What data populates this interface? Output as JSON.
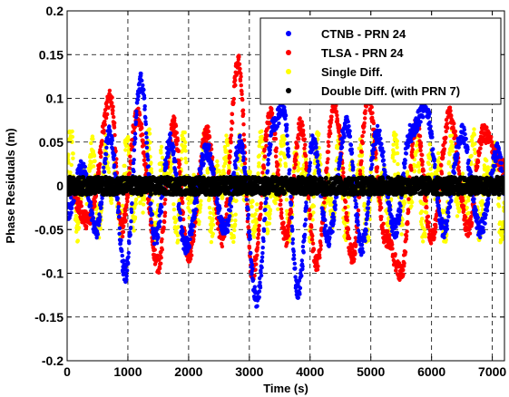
{
  "chart_data": {
    "type": "scatter",
    "title": "",
    "xlabel": "Time (s)",
    "ylabel": "Phase Residuals (m)",
    "xlim": [
      0,
      7200
    ],
    "ylim": [
      -0.2,
      0.2
    ],
    "x_ticks": [
      0,
      1000,
      2000,
      3000,
      4000,
      5000,
      6000,
      7000
    ],
    "y_ticks": [
      -0.2,
      -0.15,
      -0.1,
      -0.05,
      0,
      0.05,
      0.1,
      0.15,
      0.2
    ],
    "y_tick_labels": [
      "-0.2",
      "-0.15",
      "-0.1",
      "-0.05",
      "0",
      "0.05",
      "0.1",
      "0.15",
      "0.2"
    ],
    "grid": true,
    "grid_style": "dashed",
    "legend_position": "top-right",
    "series": [
      {
        "name": "CTNB - PRN 24",
        "color": "#0000ff",
        "peaks": [
          [
            0,
            -0.03
          ],
          [
            250,
            0.02
          ],
          [
            480,
            -0.05
          ],
          [
            700,
            0.06
          ],
          [
            960,
            -0.1
          ],
          [
            1210,
            0.12
          ],
          [
            1450,
            -0.06
          ],
          [
            1700,
            0.05
          ],
          [
            1950,
            -0.07
          ],
          [
            2300,
            0.04
          ],
          [
            2600,
            -0.05
          ],
          [
            2850,
            0.05
          ],
          [
            3120,
            -0.13
          ],
          [
            3400,
            0.07
          ],
          [
            3560,
            0.09
          ],
          [
            3800,
            -0.12
          ],
          [
            4050,
            0.05
          ],
          [
            4300,
            -0.06
          ],
          [
            4600,
            0.07
          ],
          [
            4850,
            -0.07
          ],
          [
            5100,
            0.06
          ],
          [
            5400,
            -0.05
          ],
          [
            5650,
            0.06
          ],
          [
            5900,
            0.09
          ],
          [
            6200,
            -0.05
          ],
          [
            6500,
            0.06
          ],
          [
            6800,
            -0.05
          ],
          [
            7100,
            0.04
          ],
          [
            7200,
            0.0
          ]
        ]
      },
      {
        "name": "TLSA - PRN 24",
        "color": "#ff0000",
        "peaks": [
          [
            0,
            0.0
          ],
          [
            350,
            -0.04
          ],
          [
            720,
            0.1
          ],
          [
            900,
            -0.05
          ],
          [
            1150,
            0.08
          ],
          [
            1500,
            -0.09
          ],
          [
            1750,
            0.07
          ],
          [
            2000,
            -0.08
          ],
          [
            2300,
            0.06
          ],
          [
            2550,
            -0.06
          ],
          [
            2820,
            0.14
          ],
          [
            3050,
            -0.1
          ],
          [
            3350,
            0.08
          ],
          [
            3600,
            -0.06
          ],
          [
            3850,
            0.07
          ],
          [
            4100,
            -0.09
          ],
          [
            4400,
            0.09
          ],
          [
            4700,
            -0.08
          ],
          [
            4950,
            0.1
          ],
          [
            5250,
            -0.06
          ],
          [
            5500,
            -0.1
          ],
          [
            5750,
            0.07
          ],
          [
            6000,
            -0.06
          ],
          [
            6300,
            0.08
          ],
          [
            6600,
            -0.05
          ],
          [
            6850,
            0.06
          ],
          [
            7200,
            0.02
          ]
        ]
      },
      {
        "name": "Single Diff.",
        "color": "#ffff00",
        "amplitude": 0.065
      },
      {
        "name": "Double Diff. (with PRN 7)",
        "color": "#000000",
        "amplitude": 0.01
      }
    ]
  }
}
